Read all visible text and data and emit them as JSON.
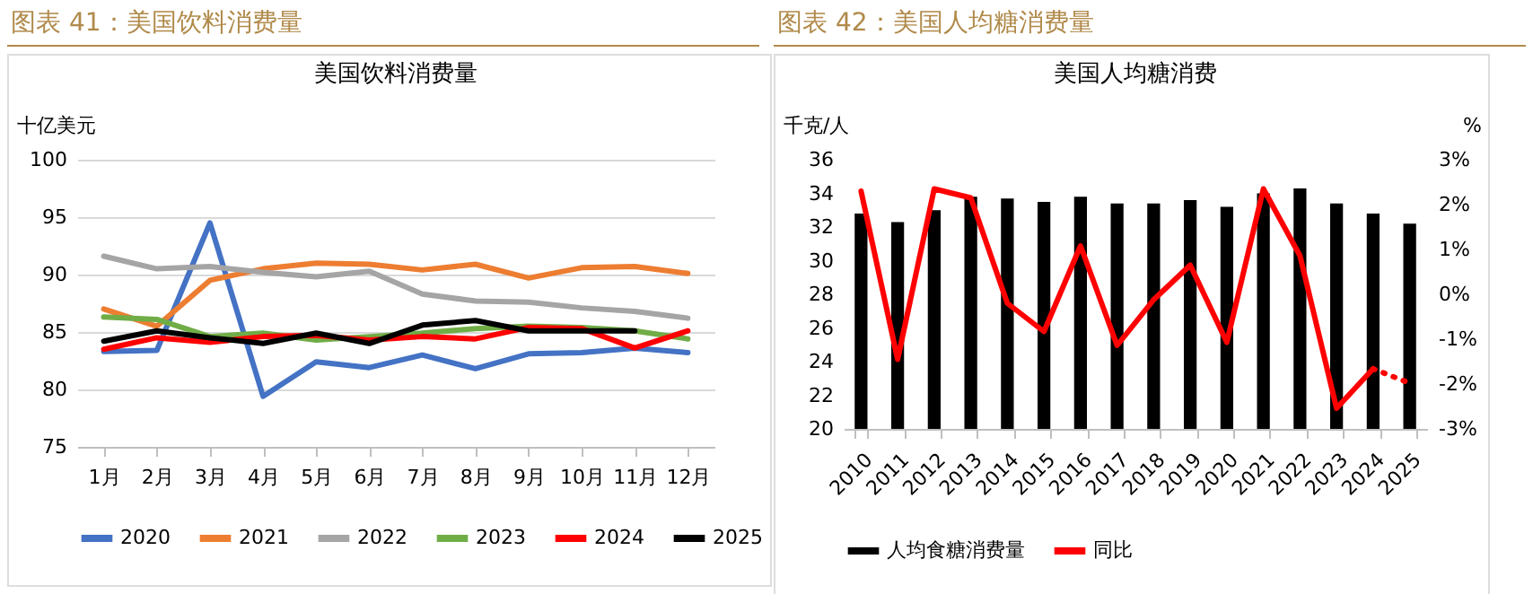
{
  "chart_data": [
    {
      "type": "line",
      "title": "图表 41：美国饮料消费量",
      "subtitle": "美国饮料消费量",
      "ylabel": "十亿美元",
      "categories": [
        "1月",
        "2月",
        "3月",
        "4月",
        "5月",
        "6月",
        "7月",
        "8月",
        "9月",
        "10月",
        "11月",
        "12月"
      ],
      "ylim": [
        75,
        100
      ],
      "yticks": [
        75,
        80,
        85,
        90,
        95,
        100
      ],
      "grid": "y",
      "legend": "bottom",
      "marker": "none",
      "series": [
        {
          "name": "2020",
          "color": "#4472c4",
          "values": [
            83.3,
            83.4,
            94.5,
            79.4,
            82.4,
            81.9,
            83.0,
            81.8,
            83.1,
            83.2,
            83.6,
            83.2
          ]
        },
        {
          "name": "2021",
          "color": "#ed7d31",
          "values": [
            87.0,
            85.5,
            89.5,
            90.5,
            91.0,
            90.9,
            90.4,
            90.9,
            89.7,
            90.6,
            90.7,
            90.1
          ]
        },
        {
          "name": "2022",
          "color": "#a5a5a5",
          "values": [
            91.6,
            90.5,
            90.7,
            90.2,
            89.8,
            90.3,
            88.3,
            87.7,
            87.6,
            87.1,
            86.8,
            86.2
          ]
        },
        {
          "name": "2023",
          "color": "#70ad47",
          "values": [
            86.3,
            86.1,
            84.6,
            84.9,
            84.3,
            84.6,
            84.9,
            85.3,
            85.5,
            85.4,
            85.1,
            84.4
          ]
        },
        {
          "name": "2024",
          "color": "#ff0000",
          "values": [
            83.5,
            84.5,
            84.1,
            84.6,
            84.7,
            84.3,
            84.6,
            84.4,
            85.4,
            85.3,
            83.6,
            85.1
          ]
        },
        {
          "name": "2025",
          "color": "#000000",
          "values": [
            84.2,
            85.1,
            84.5,
            84.0,
            84.9,
            84.0,
            85.6,
            86.0,
            85.1,
            85.1,
            85.1,
            null
          ]
        }
      ]
    },
    {
      "type": "bar",
      "title": "图表 42：美国人均糖消费量",
      "subtitle": "美国人均糖消费",
      "ylabel": "千克/人",
      "y2label": "%",
      "categories": [
        "2010",
        "2011",
        "2012",
        "2013",
        "2014",
        "2015",
        "2016",
        "2017",
        "2018",
        "2019",
        "2020",
        "2021",
        "2022",
        "2023",
        "2024",
        "2025"
      ],
      "ylim": [
        20,
        36
      ],
      "yticks": [
        20,
        22,
        24,
        26,
        28,
        30,
        32,
        34,
        36
      ],
      "y2lim": [
        -3,
        3
      ],
      "y2ticks": [
        {
          "value": -3,
          "label": "-3%"
        },
        {
          "value": -2,
          "label": "-2%"
        },
        {
          "value": -1,
          "label": "-1%"
        },
        {
          "value": 0,
          "label": "0%"
        },
        {
          "value": 1,
          "label": "1%"
        },
        {
          "value": 2,
          "label": "2%"
        },
        {
          "value": 3,
          "label": "3%"
        }
      ],
      "legend": "bottom",
      "series": [
        {
          "name": "人均食糖消费量",
          "color": "#000000",
          "values": [
            32.8,
            32.3,
            33.0,
            33.8,
            33.7,
            33.5,
            33.8,
            33.4,
            33.4,
            33.6,
            33.2,
            34.0,
            34.3,
            33.4,
            32.8,
            32.2
          ]
        },
        {
          "name": "同比",
          "type": "line",
          "axis": "y2",
          "color": "#ff0000",
          "line_style": "solid",
          "values": [
            2.3,
            -1.45,
            2.35,
            2.15,
            -0.2,
            -0.83,
            1.08,
            -1.14,
            -0.12,
            0.65,
            -1.07,
            2.35,
            0.86,
            -2.54,
            -1.66,
            null
          ]
        },
        {
          "type": "line",
          "axis": "y2",
          "color": "#ff0000",
          "line_style": "dotted",
          "values": [
            null,
            null,
            null,
            null,
            null,
            null,
            null,
            null,
            null,
            null,
            null,
            null,
            null,
            null,
            -1.66,
            -1.98
          ]
        }
      ]
    }
  ]
}
